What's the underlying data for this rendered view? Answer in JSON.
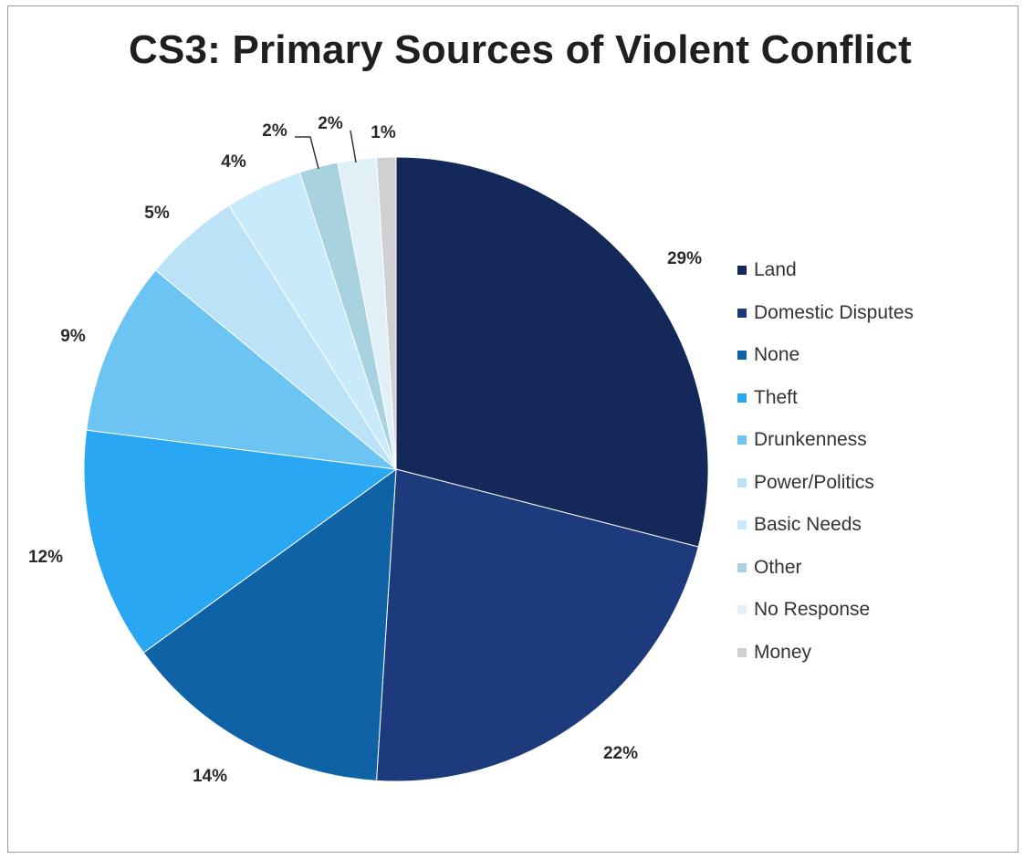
{
  "chart_data": {
    "type": "pie",
    "title": "CS3: Primary Sources of Violent Conflict",
    "slices": [
      {
        "name": "Land",
        "value": 29,
        "label": "29%",
        "color": "#14295a"
      },
      {
        "name": "Domestic Disputes",
        "value": 22,
        "label": "22%",
        "color": "#1d3a7c"
      },
      {
        "name": "None",
        "value": 14,
        "label": "14%",
        "color": "#0e62a5"
      },
      {
        "name": "Theft",
        "value": 12,
        "label": "12%",
        "color": "#2aa7f2"
      },
      {
        "name": "Drunkenness",
        "value": 9,
        "label": "9%",
        "color": "#6cc4f2"
      },
      {
        "name": "Power/Politics",
        "value": 5,
        "label": "5%",
        "color": "#bbe2f6"
      },
      {
        "name": "Basic Needs",
        "value": 4,
        "label": "4%",
        "color": "#c9eafb"
      },
      {
        "name": "Other",
        "value": 2,
        "label": "2%",
        "color": "#a8d2e0"
      },
      {
        "name": "No Response",
        "value": 2,
        "label": "2%",
        "color": "#e1eff7"
      },
      {
        "name": "Money",
        "value": 1,
        "label": "1%",
        "color": "#d0d0d0"
      }
    ],
    "legend_position": "right"
  }
}
